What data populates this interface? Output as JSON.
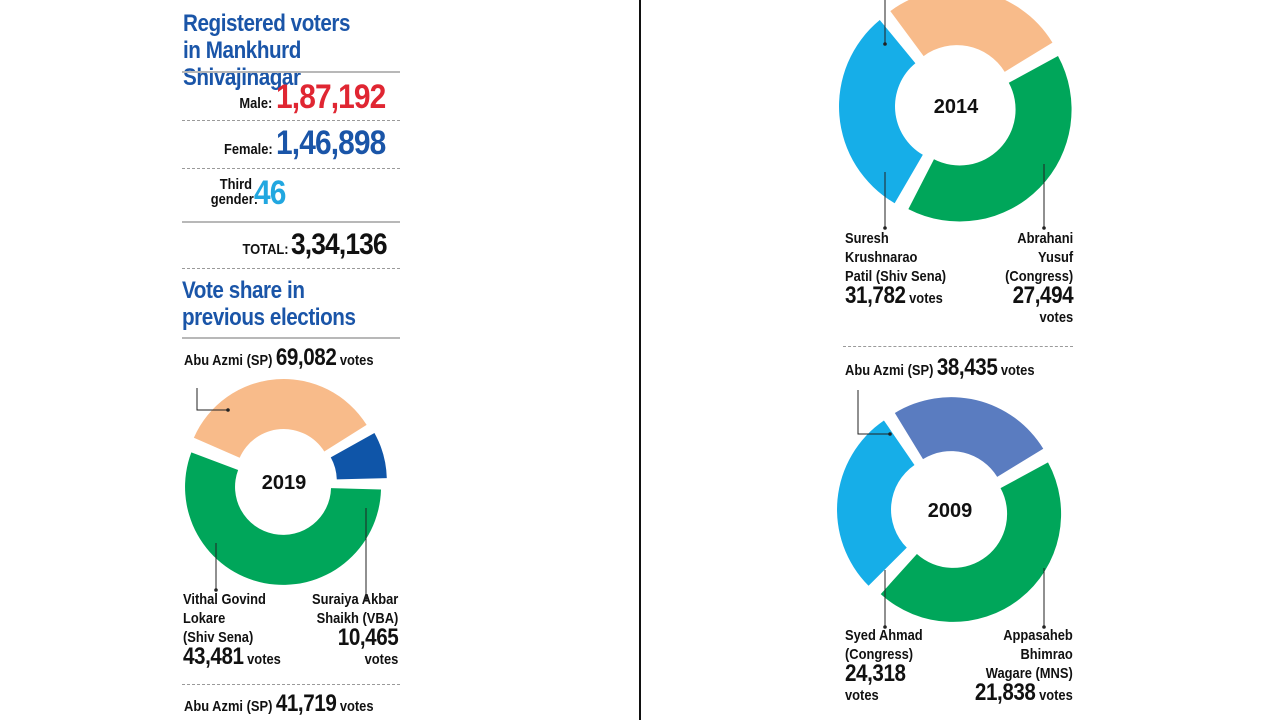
{
  "header": {
    "title": "Registered voters in Mankhurd Shivajinagar"
  },
  "registered": {
    "male_label": "Male:",
    "male_value": "1,87,192",
    "female_label": "Female:",
    "female_value": "1,46,898",
    "third_label_line1": "Third",
    "third_label_line2": "gender:",
    "third_value": "46",
    "total_label": "TOTAL:",
    "total_value": "3,34,136"
  },
  "section_title": "Vote share in previous elections",
  "votes_word": "votes",
  "colors": {
    "title_blue": "#1a55a8",
    "male_red": "#e02632",
    "third_cyan": "#21a7e0",
    "sp_green": "#00a65a",
    "shiv_sena_cyan": "#16aee8",
    "congress_orange": "#f8bb8a",
    "vba_blue": "#0f55a8",
    "mns_blue": "#5a7cc0"
  },
  "chart_data": [
    {
      "type": "pie",
      "title": "2019",
      "labels": [
        "Abu Azmi (SP)",
        "Vithal Govind Lokare (Shiv Sena)",
        "Suraiya Akbar Shaikh (VBA)"
      ],
      "values": [
        69082,
        43481,
        10465
      ],
      "display": [
        "69,082",
        "43,481",
        "10,465"
      ],
      "colors": [
        "#00a65a",
        "#f8bb8a",
        "#0f55a8"
      ]
    },
    {
      "type": "pie",
      "title": "2014",
      "labels": [
        "Abu Azmi (SP)",
        "Suresh Krushnarao Patil (Shiv Sena)",
        "Abrahani Yusuf (Congress)"
      ],
      "values": [
        41719,
        31782,
        27494
      ],
      "display": [
        "41,719",
        "31,782",
        "27,494"
      ],
      "colors": [
        "#00a65a",
        "#16aee8",
        "#f8bb8a"
      ]
    },
    {
      "type": "pie",
      "title": "2009",
      "labels": [
        "Abu Azmi (SP)",
        "Syed Ahmad (Congress)",
        "Appasaheb Bhimrao Wagare (MNS)"
      ],
      "values": [
        38435,
        24318,
        21838
      ],
      "display": [
        "38,435",
        "24,318",
        "21,838"
      ],
      "colors": [
        "#00a65a",
        "#16aee8",
        "#5a7cc0"
      ]
    }
  ],
  "labels": {
    "c2019_sp_name": "Abu Azmi",
    "c2019_sp_party": "(SP)",
    "c2019_ss_line1": "Vithal Govind",
    "c2019_ss_line2": "Lokare",
    "c2019_ss_line3": "(Shiv Sena)",
    "c2019_vba_line1": "Suraiya Akbar",
    "c2019_vba_line2": "Shaikh (VBA)",
    "c2014_sp_name": "Abu Azmi",
    "c2014_sp_party": "(SP)",
    "c2014_ss_line1": "Suresh",
    "c2014_ss_line2": "Krushnarao",
    "c2014_ss_line3": "Patil (Shiv Sena)",
    "c2014_cong_line1": "Abrahani",
    "c2014_cong_line2": "Yusuf",
    "c2014_cong_line3": "(Congress)",
    "c2009_sp_name": "Abu Azmi",
    "c2009_sp_party": "(SP)",
    "c2009_cong_line1": "Syed Ahmad",
    "c2009_cong_line2": "(Congress)",
    "c2009_mns_line1": "Appasaheb",
    "c2009_mns_line2": "Bhimrao",
    "c2009_mns_line3": "Wagare (MNS)"
  }
}
